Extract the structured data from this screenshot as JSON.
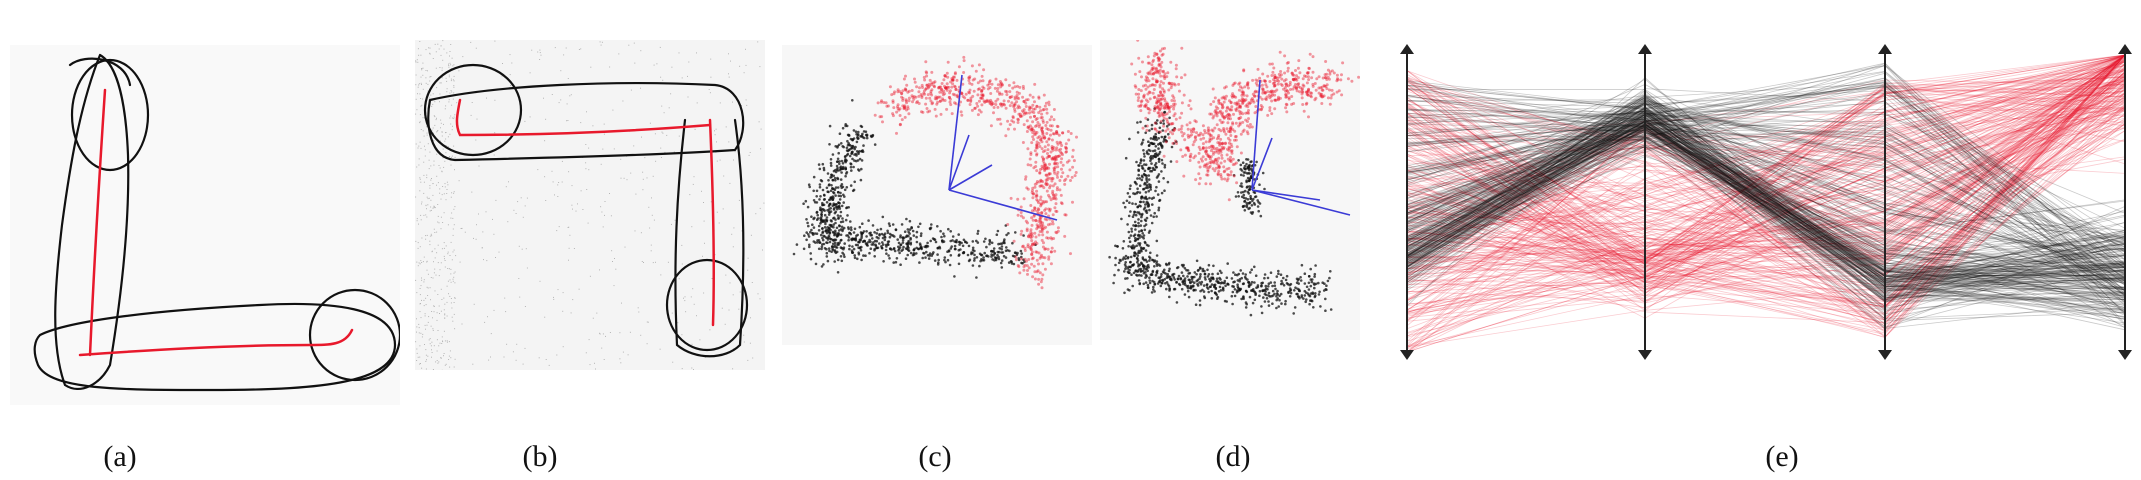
{
  "figure": {
    "panels": [
      {
        "id": "a",
        "caption": "(a)"
      },
      {
        "id": "b",
        "caption": "(b)"
      },
      {
        "id": "c",
        "caption": "(c)"
      },
      {
        "id": "d",
        "caption": "(d)"
      },
      {
        "id": "e",
        "caption": "(e)"
      }
    ]
  },
  "colors": {
    "red": "#e8192c",
    "black": "#111111",
    "blue": "#3b3bd6",
    "noise": "#b5b5b5",
    "panel_bg": "#f7f7f7"
  }
}
